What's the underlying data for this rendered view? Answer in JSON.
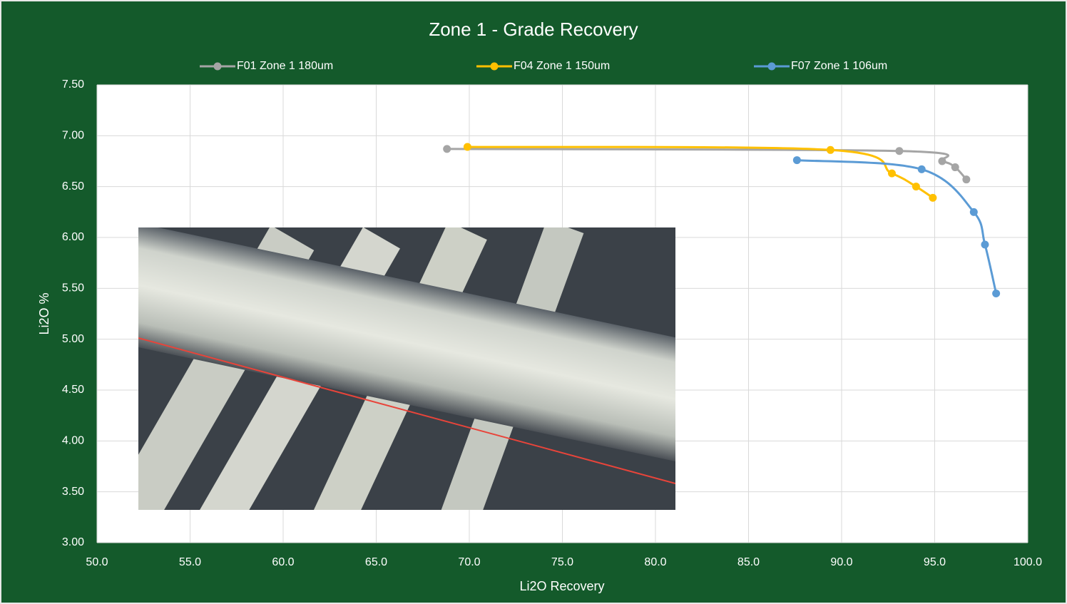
{
  "chart_data": {
    "type": "line",
    "title": "Zone 1 - Grade Recovery",
    "x_label": "Li2O Recovery",
    "y_label": "Li2O %",
    "xlim": [
      50,
      100
    ],
    "ylim": [
      3,
      7.5
    ],
    "xticks": [
      {
        "value": 50,
        "label": "50.0"
      },
      {
        "value": 55,
        "label": "55.0"
      },
      {
        "value": 60,
        "label": "60.0"
      },
      {
        "value": 65,
        "label": "65.0"
      },
      {
        "value": 70,
        "label": "70.0"
      },
      {
        "value": 75,
        "label": "75.0"
      },
      {
        "value": 80,
        "label": "80.0"
      },
      {
        "value": 85,
        "label": "85.0"
      },
      {
        "value": 90,
        "label": "90.0"
      },
      {
        "value": 95,
        "label": "95.0"
      },
      {
        "value": 100,
        "label": "100.0"
      }
    ],
    "yticks": [
      {
        "value": 3,
        "label": "3.00"
      },
      {
        "value": 3.5,
        "label": "3.50"
      },
      {
        "value": 4,
        "label": "4.00"
      },
      {
        "value": 4.5,
        "label": "4.50"
      },
      {
        "value": 5,
        "label": "5.00"
      },
      {
        "value": 5.5,
        "label": "5.50"
      },
      {
        "value": 6,
        "label": "6.00"
      },
      {
        "value": 6.5,
        "label": "6.50"
      },
      {
        "value": 7,
        "label": "7.00"
      },
      {
        "value": 7.5,
        "label": "7.50"
      }
    ],
    "grid": true,
    "smooth": true,
    "legend": "top",
    "series": [
      {
        "name": "F01 Zone 1 180um",
        "color": "#a5a5a5",
        "x": [
          68.8,
          93.1,
          95.4,
          96.1,
          96.7
        ],
        "values": [
          6.87,
          6.85,
          6.75,
          6.69,
          6.57
        ]
      },
      {
        "name": "F04 Zone 1 150um",
        "color": "#ffc000",
        "x": [
          69.9,
          89.4,
          92.7,
          94.0,
          94.9
        ],
        "values": [
          6.89,
          6.86,
          6.63,
          6.5,
          6.39
        ]
      },
      {
        "name": "F07 Zone 1 106um",
        "color": "#5b9bd5",
        "x": [
          87.6,
          94.3,
          97.1,
          97.7,
          98.3
        ],
        "values": [
          6.76,
          6.67,
          6.25,
          5.93,
          5.45
        ]
      }
    ]
  }
}
